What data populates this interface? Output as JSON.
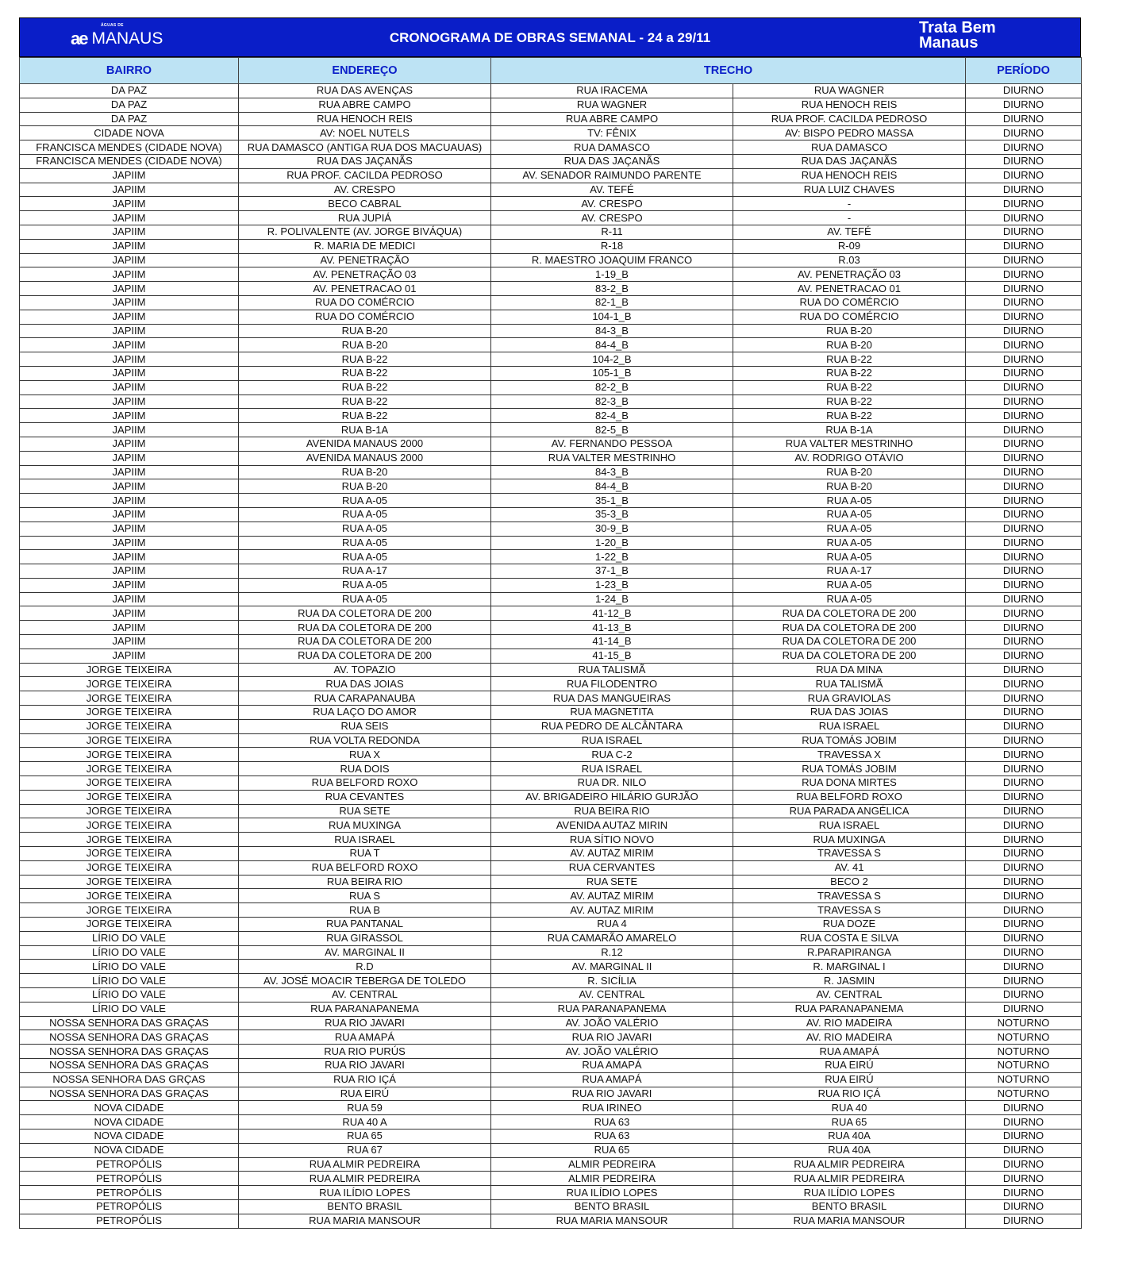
{
  "header": {
    "logo_left_small": "ÁGUAS DE",
    "logo_left_main": "MANAUS",
    "logo_left_mark": "ae",
    "title": "CRONOGRAMA DE OBRAS SEMANAL - 24 a 29/11",
    "logo_right_line1": "Trata Bem",
    "logo_right_line2": "Manaus",
    "brand_color": "#0a1ec8",
    "header_bg": "#bde3f4"
  },
  "columns": {
    "bairro": "BAIRRO",
    "endereco": "ENDEREÇO",
    "trecho": "TRECHO",
    "periodo": "PERÍODO"
  },
  "rows": [
    [
      "DA PAZ",
      "RUA DAS AVENÇAS",
      "RUA IRACEMA",
      "RUA WAGNER",
      "DIURNO"
    ],
    [
      "DA PAZ",
      "RUA ABRE CAMPO",
      "RUA WAGNER",
      "RUA HENOCH REIS",
      "DIURNO"
    ],
    [
      "DA PAZ",
      "RUA HENOCH REIS",
      "RUA ABRE CAMPO",
      "RUA PROF. CACILDA PEDROSO",
      "DIURNO"
    ],
    [
      "CIDADE NOVA",
      "AV: NOEL NUTELS",
      "TV: FÊNIX",
      "AV: BISPO PEDRO MASSA",
      "DIURNO"
    ],
    [
      "FRANCISCA MENDES (CIDADE NOVA)",
      "RUA DAMASCO (ANTIGA RUA DOS MACUAUAS)",
      "RUA DAMASCO",
      "RUA DAMASCO",
      "DIURNO"
    ],
    [
      "FRANCISCA MENDES (CIDADE NOVA)",
      "RUA DAS JAÇANÃS",
      "RUA DAS JAÇANÃS",
      "RUA DAS JAÇANÃS",
      "DIURNO"
    ],
    [
      "JAPIIM",
      "RUA PROF. CACILDA PEDROSO",
      "AV. SENADOR RAIMUNDO PARENTE",
      "RUA HENOCH REIS",
      "DIURNO"
    ],
    [
      "JAPIIM",
      "AV. CRESPO",
      "AV. TEFÉ",
      "RUA LUIZ CHAVES",
      "DIURNO"
    ],
    [
      "JAPIIM",
      "BECO CABRAL",
      "AV. CRESPO",
      "-",
      "DIURNO"
    ],
    [
      "JAPIIM",
      "RUA JUPIÁ",
      "AV. CRESPO",
      "-",
      "DIURNO"
    ],
    [
      "JAPIIM",
      "R. POLIVALENTE (AV. JORGE BIVÁQUA)",
      "R-11",
      "AV. TEFÉ",
      "DIURNO"
    ],
    [
      "JAPIIM",
      "R. MARIA DE MEDICI",
      "R-18",
      "R-09",
      "DIURNO"
    ],
    [
      "JAPIIM",
      "AV. PENETRAÇÃO",
      "R. MAESTRO JOAQUIM FRANCO",
      "R.03",
      "DIURNO"
    ],
    [
      "JAPIIM",
      "AV. PENETRAÇÃO 03",
      "1-19_B",
      "AV. PENETRAÇÃO 03",
      "DIURNO"
    ],
    [
      "JAPIIM",
      "AV. PENETRACAO 01",
      "83-2_B",
      "AV. PENETRACAO 01",
      "DIURNO"
    ],
    [
      "JAPIIM",
      "RUA DO COMÉRCIO",
      "82-1_B",
      "RUA DO COMÉRCIO",
      "DIURNO"
    ],
    [
      "JAPIIM",
      "RUA DO COMÉRCIO",
      "104-1_B",
      "RUA DO COMÉRCIO",
      "DIURNO"
    ],
    [
      "JAPIIM",
      "RUA B-20",
      "84-3_B",
      "RUA B-20",
      "DIURNO"
    ],
    [
      "JAPIIM",
      "RUA B-20",
      "84-4_B",
      "RUA B-20",
      "DIURNO"
    ],
    [
      "JAPIIM",
      "RUA B-22",
      "104-2_B",
      "RUA B-22",
      "DIURNO"
    ],
    [
      "JAPIIM",
      "RUA B-22",
      "105-1_B",
      "RUA B-22",
      "DIURNO"
    ],
    [
      "JAPIIM",
      "RUA B-22",
      "82-2_B",
      "RUA B-22",
      "DIURNO"
    ],
    [
      "JAPIIM",
      "RUA B-22",
      "82-3_B",
      "RUA B-22",
      "DIURNO"
    ],
    [
      "JAPIIM",
      "RUA B-22",
      "82-4_B",
      "RUA B-22",
      "DIURNO"
    ],
    [
      "JAPIIM",
      "RUA B-1A",
      "82-5_B",
      "RUA B-1A",
      "DIURNO"
    ],
    [
      "JAPIIM",
      "AVENIDA MANAUS 2000",
      "AV. FERNANDO PESSOA",
      "RUA VALTER MESTRINHO",
      "DIURNO"
    ],
    [
      "JAPIIM",
      "AVENIDA MANAUS 2000",
      "RUA VALTER MESTRINHO",
      "AV. RODRIGO OTÁVIO",
      "DIURNO"
    ],
    [
      "JAPIIM",
      "RUA B-20",
      "84-3_B",
      "RUA B-20",
      "DIURNO"
    ],
    [
      "JAPIIM",
      "RUA B-20",
      "84-4_B",
      "RUA B-20",
      "DIURNO"
    ],
    [
      "JAPIIM",
      "RUA A-05",
      "35-1_B",
      "RUA A-05",
      "DIURNO"
    ],
    [
      "JAPIIM",
      "RUA A-05",
      "35-3_B",
      "RUA A-05",
      "DIURNO"
    ],
    [
      "JAPIIM",
      "RUA A-05",
      "30-9_B",
      "RUA A-05",
      "DIURNO"
    ],
    [
      "JAPIIM",
      "RUA A-05",
      "1-20_B",
      "RUA A-05",
      "DIURNO"
    ],
    [
      "JAPIIM",
      "RUA A-05",
      "1-22_B",
      "RUA A-05",
      "DIURNO"
    ],
    [
      "JAPIIM",
      "RUA A-17",
      "37-1_B",
      "RUA A-17",
      "DIURNO"
    ],
    [
      "JAPIIM",
      "RUA A-05",
      "1-23_B",
      "RUA A-05",
      "DIURNO"
    ],
    [
      "JAPIIM",
      "RUA A-05",
      "1-24_B",
      "RUA A-05",
      "DIURNO"
    ],
    [
      "JAPIIM",
      "RUA DA COLETORA DE 200",
      "41-12_B",
      "RUA DA COLETORA DE 200",
      "DIURNO"
    ],
    [
      "JAPIIM",
      "RUA DA COLETORA DE 200",
      "41-13_B",
      "RUA DA COLETORA DE 200",
      "DIURNO"
    ],
    [
      "JAPIIM",
      "RUA DA COLETORA DE 200",
      "41-14_B",
      "RUA DA COLETORA DE 200",
      "DIURNO"
    ],
    [
      "JAPIIM",
      "RUA DA COLETORA DE 200",
      "41-15_B",
      "RUA DA COLETORA DE 200",
      "DIURNO"
    ],
    [
      "JORGE TEIXEIRA",
      "AV. TOPAZIO",
      "RUA TALISMÃ",
      "RUA DA MINA",
      "DIURNO"
    ],
    [
      "JORGE TEIXEIRA",
      "RUA DAS JOIAS",
      "RUA FILODENTRO",
      "RUA TALISMÃ",
      "DIURNO"
    ],
    [
      "JORGE TEIXEIRA",
      "RUA CARAPANAUBA",
      "RUA DAS  MANGUEIRAS",
      "RUA GRAVIOLAS",
      "DIURNO"
    ],
    [
      "JORGE TEIXEIRA",
      "RUA LAÇO DO AMOR",
      "RUA MAGNETITA",
      "RUA DAS JOIAS",
      "DIURNO"
    ],
    [
      "JORGE TEIXEIRA",
      "RUA SEIS",
      "RUA PEDRO DE ALCÂNTARA",
      "RUA ISRAEL",
      "DIURNO"
    ],
    [
      "JORGE TEIXEIRA",
      "RUA VOLTA REDONDA",
      "RUA ISRAEL",
      "RUA TOMÁS JOBIM",
      "DIURNO"
    ],
    [
      "JORGE TEIXEIRA",
      "RUA X",
      "RUA C-2",
      "TRAVESSA X",
      "DIURNO"
    ],
    [
      "JORGE TEIXEIRA",
      "RUA DOIS",
      "RUA ISRAEL",
      "RUA TOMÁS JOBIM",
      "DIURNO"
    ],
    [
      "JORGE TEIXEIRA",
      "RUA BELFORD ROXO",
      "RUA DR. NILO",
      "RUA DONA MIRTES",
      "DIURNO"
    ],
    [
      "JORGE TEIXEIRA",
      "RUA CEVANTES",
      "AV. BRIGADEIRO HILÁRIO GURJÃO",
      "RUA BELFORD ROXO",
      "DIURNO"
    ],
    [
      "JORGE TEIXEIRA",
      "RUA SETE",
      "RUA BEIRA RIO",
      "RUA PARADA ANGÉLICA",
      "DIURNO"
    ],
    [
      "JORGE TEIXEIRA",
      "RUA MUXINGA",
      "AVENIDA AUTAZ MIRIN",
      "RUA ISRAEL",
      "DIURNO"
    ],
    [
      "JORGE TEIXEIRA",
      "RUA ISRAEL",
      "RUA SÍTIO NOVO",
      "RUA MUXINGA",
      "DIURNO"
    ],
    [
      "JORGE TEIXEIRA",
      "RUA T",
      "AV. AUTAZ MIRIM",
      "TRAVESSA S",
      "DIURNO"
    ],
    [
      "JORGE TEIXEIRA",
      "RUA BELFORD ROXO",
      "RUA CERVANTES",
      "AV. 41",
      "DIURNO"
    ],
    [
      "JORGE TEIXEIRA",
      "RUA BEIRA RIO",
      "RUA SETE",
      "BECO 2",
      "DIURNO"
    ],
    [
      "JORGE TEIXEIRA",
      "RUA S",
      "AV. AUTAZ MIRIM",
      "TRAVESSA S",
      "DIURNO"
    ],
    [
      "JORGE TEIXEIRA",
      "RUA B",
      "AV. AUTAZ MIRIM",
      "TRAVESSA S",
      "DIURNO"
    ],
    [
      "JORGE TEIXEIRA",
      "RUA  PANTANAL",
      "RUA 4",
      "RUA DOZE",
      "DIURNO"
    ],
    [
      "LÍRIO DO VALE",
      "RUA GIRASSOL",
      "RUA CAMARÃO AMARELO",
      "RUA COSTA E SILVA",
      "DIURNO"
    ],
    [
      "LÍRIO DO VALE",
      "AV. MARGINAL II",
      "R.12",
      "R.PARAPIRANGA",
      "DIURNO"
    ],
    [
      "LÍRIO DO VALE",
      "R.D",
      "AV. MARGINAL II",
      "R. MARGINAL I",
      "DIURNO"
    ],
    [
      "LÍRIO DO VALE",
      "AV. JOSÉ MOACIR TEBERGA DE TOLEDO",
      "R. SICÍLIA",
      "R. JASMIN",
      "DIURNO"
    ],
    [
      "LÍRIO DO VALE",
      "AV. CENTRAL",
      "AV. CENTRAL",
      "AV. CENTRAL",
      "DIURNO"
    ],
    [
      "LÍRIO DO VALE",
      "RUA PARANAPANEMA",
      "RUA PARANAPANEMA",
      "RUA PARANAPANEMA",
      "DIURNO"
    ],
    [
      "NOSSA SENHORA DAS GRAÇAS",
      "RUA RIO JAVARI",
      "AV. JOÃO VALÉRIO",
      "AV. RIO MADEIRA",
      "NOTURNO"
    ],
    [
      "NOSSA SENHORA DAS GRAÇAS",
      "RUA AMAPÁ",
      "RUA RIO JAVARI",
      "AV. RIO MADEIRA",
      "NOTURNO"
    ],
    [
      "NOSSA SENHORA DAS GRAÇAS",
      "RUA RIO PURÚS",
      "AV. JOÃO VALÉRIO",
      "RUA AMAPÁ",
      "NOTURNO"
    ],
    [
      "NOSSA SENHORA DAS GRAÇAS",
      "RUA RIO JAVARI",
      "RUA AMAPÁ",
      "RUA EIRÚ",
      "NOTURNO"
    ],
    [
      "NOSSA SENHORA DAS GRÇAS",
      "RUA RIO IÇÁ",
      "RUA AMAPÁ",
      "RUA EIRÚ",
      "NOTURNO"
    ],
    [
      "NOSSA SENHORA DAS GRAÇAS",
      "RUA EIRÚ",
      "RUA RIO JAVARI",
      "RUA RIO IÇÁ",
      "NOTURNO"
    ],
    [
      "NOVA CIDADE",
      "RUA 59",
      "RUA IRINEO",
      "RUA 40",
      "DIURNO"
    ],
    [
      "NOVA CIDADE",
      "RUA 40 A",
      "RUA 63",
      "RUA 65",
      "DIURNO"
    ],
    [
      "NOVA CIDADE",
      "RUA 65",
      "RUA 63",
      "RUA 40A",
      "DIURNO"
    ],
    [
      "NOVA CIDADE",
      "RUA 67",
      "RUA 65",
      "RUA 40A",
      "DIURNO"
    ],
    [
      "PETROPÓLIS",
      "RUA ALMIR PEDREIRA",
      "ALMIR PEDREIRA",
      "RUA ALMIR PEDREIRA",
      "DIURNO"
    ],
    [
      "PETROPÓLIS",
      "RUA ALMIR PEDREIRA",
      "ALMIR PEDREIRA",
      "RUA ALMIR PEDREIRA",
      "DIURNO"
    ],
    [
      "PETROPÓLIS",
      "RUA ILÍDIO LOPES",
      "RUA ILÍDIO LOPES",
      "RUA ILÍDIO LOPES",
      "DIURNO"
    ],
    [
      "PETROPÓLIS",
      "BENTO BRASIL",
      "BENTO BRASIL",
      "BENTO BRASIL",
      "DIURNO"
    ],
    [
      "PETROPÓLIS",
      "RUA MARIA MANSOUR",
      "RUA MARIA MANSOUR",
      "RUA MARIA MANSOUR",
      "DIURNO"
    ]
  ]
}
